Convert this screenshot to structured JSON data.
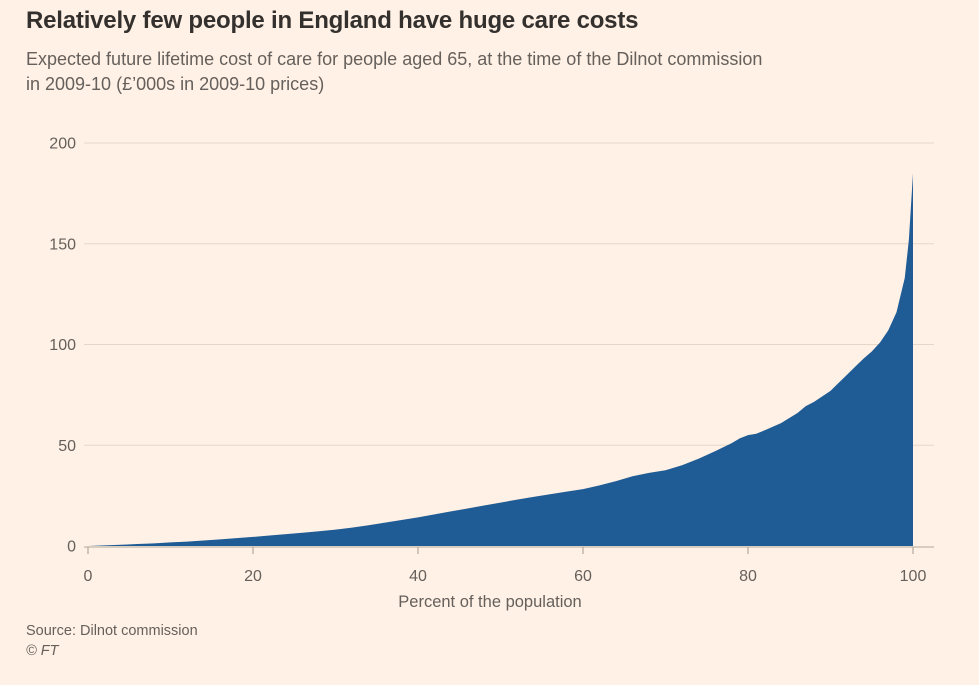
{
  "header": {
    "title": "Relatively few people in England have huge care costs",
    "subtitle": "Expected future lifetime cost of care for people aged 65, at the time of the Dilnot commission\nin 2009-10 (£’000s in 2009-10 prices)"
  },
  "footer": {
    "source": "Source: Dilnot commission",
    "copyright": "© FT"
  },
  "colors": {
    "background": "#FFF1E5",
    "area_fill": "#1F5B95",
    "title_text": "#33302E",
    "muted_text": "#66605C",
    "gridline": "#E6D8C9",
    "axis_line": "#B3A99C",
    "tick_mark": "#A39A8D"
  },
  "chart_data": {
    "type": "area",
    "title": "Relatively few people in England have huge care costs",
    "subtitle": "Expected future lifetime cost of care for people aged 65, at the time of the Dilnot commission in 2009-10 (£’000s in 2009-10 prices)",
    "xlabel": "Percent of the population",
    "ylabel": "",
    "xlim": [
      0,
      100
    ],
    "ylim": [
      0,
      200
    ],
    "x_ticks": [
      0,
      20,
      40,
      60,
      80,
      100
    ],
    "y_ticks": [
      0,
      50,
      100,
      150,
      200
    ],
    "grid": true,
    "legend_position": "none",
    "series": [
      {
        "name": "Expected future lifetime cost of care (£’000s, 2009-10 prices)",
        "x": [
          0,
          2,
          4,
          6,
          8,
          10,
          12,
          14,
          16,
          18,
          20,
          22,
          24,
          26,
          28,
          30,
          32,
          34,
          36,
          38,
          40,
          42,
          44,
          46,
          48,
          50,
          52,
          54,
          56,
          58,
          60,
          62,
          64,
          66,
          68,
          70,
          72,
          74,
          76,
          78,
          79,
          80,
          81,
          82,
          84,
          86,
          87,
          88,
          90,
          91,
          92,
          93,
          94,
          95,
          96,
          97,
          98,
          99,
          99.5,
          100
        ],
        "y": [
          0,
          0.3,
          0.6,
          1.0,
          1.3,
          1.8,
          2.2,
          2.7,
          3.3,
          3.9,
          4.5,
          5.2,
          5.9,
          6.6,
          7.3,
          8.1,
          9.1,
          10.3,
          11.6,
          12.9,
          14.2,
          15.7,
          17.2,
          18.6,
          20.1,
          21.5,
          23.0,
          24.4,
          25.7,
          27.0,
          28.2,
          30.1,
          32.2,
          34.6,
          36.3,
          37.6,
          40.1,
          43.3,
          47.0,
          51.0,
          53.4,
          55.0,
          55.7,
          57.4,
          61.0,
          66.0,
          69.4,
          71.5,
          77.0,
          81.0,
          85.0,
          89.0,
          93.0,
          96.5,
          101.0,
          107.0,
          116.0,
          133.0,
          152.0,
          185.0
        ]
      }
    ]
  }
}
